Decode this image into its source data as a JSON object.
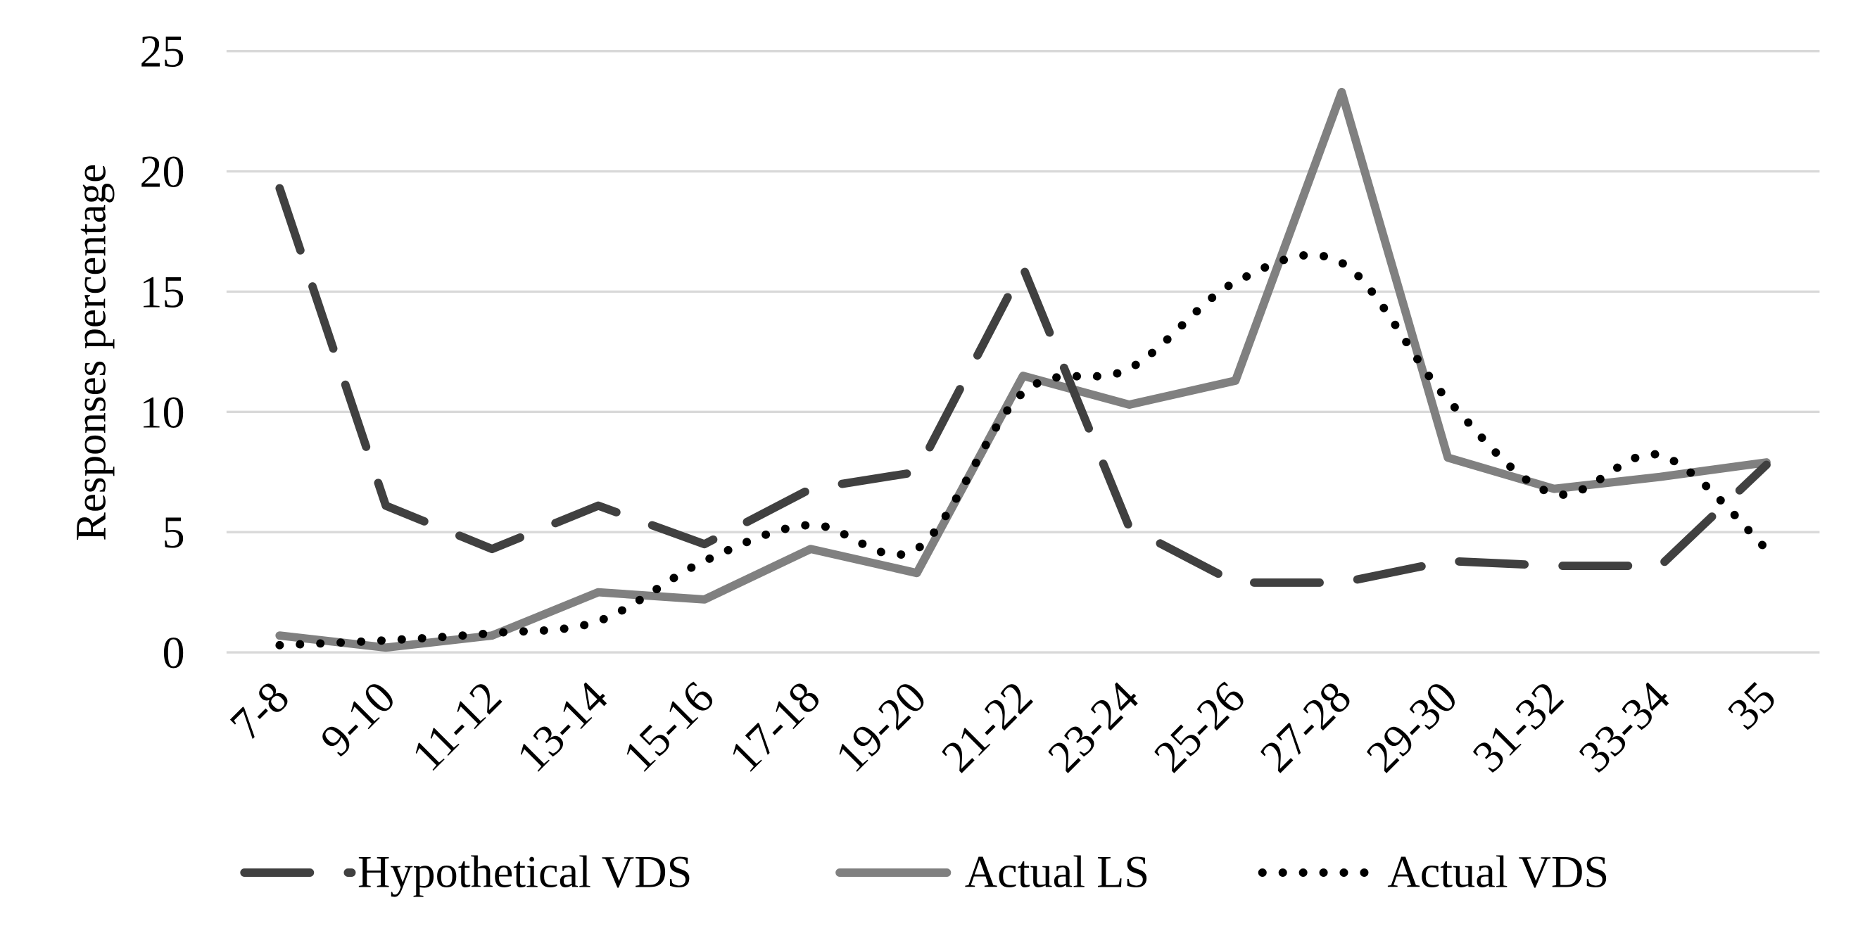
{
  "chart_data": {
    "type": "line",
    "title": "",
    "xlabel": "",
    "ylabel": "Responses percentage",
    "ylim": [
      0,
      25
    ],
    "yticks": [
      0,
      5,
      10,
      15,
      20,
      25
    ],
    "grid": true,
    "legend_placement": "bottom",
    "categories": [
      "7-8",
      "9-10",
      "11-12",
      "13-14",
      "15-16",
      "17-18",
      "19-20",
      "21-22",
      "23-24",
      "25-26",
      "27-28",
      "29-30",
      "31-32",
      "33-34",
      "35"
    ],
    "series": [
      {
        "name": "Hypothetical VDS",
        "style": "dashed",
        "color": "#404040",
        "values": [
          19.3,
          6.1,
          4.3,
          6.1,
          4.5,
          6.8,
          7.5,
          16.0,
          5.2,
          2.9,
          2.9,
          3.8,
          3.6,
          3.6,
          7.8
        ]
      },
      {
        "name": "Actual LS",
        "style": "solid",
        "color": "#808080",
        "values": [
          0.7,
          0.2,
          0.7,
          2.5,
          2.2,
          4.3,
          3.3,
          11.5,
          10.3,
          11.3,
          23.3,
          8.1,
          6.8,
          7.3,
          7.9
        ]
      },
      {
        "name": "Actual VDS",
        "style": "dotted",
        "color": "#000000",
        "values": [
          0.3,
          0.5,
          0.8,
          1.3,
          3.8,
          5.3,
          4.3,
          10.8,
          11.8,
          15.4,
          16.2,
          10.5,
          6.6,
          8.2,
          4.3
        ]
      }
    ]
  }
}
